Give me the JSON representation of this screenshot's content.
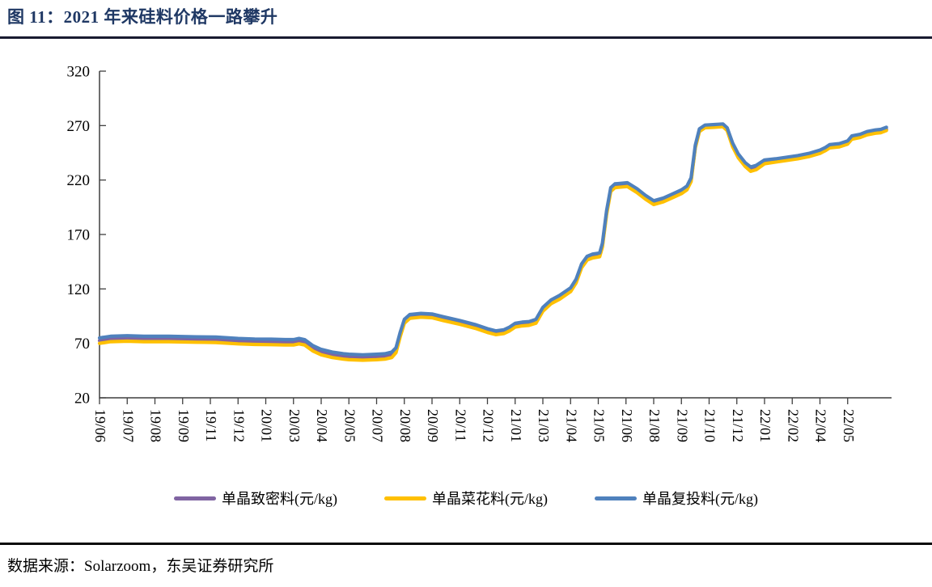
{
  "title": "图 11：2021 年来硅料价格一路攀升",
  "source": "数据来源：Solarzoom，东吴证券研究所",
  "chart_data": {
    "type": "line",
    "title": "图 11：2021 年来硅料价格一路攀升",
    "xlabel": "",
    "ylabel": "",
    "unit": "元/kg",
    "ylim": [
      20,
      320
    ],
    "yticks": [
      20,
      70,
      120,
      170,
      220,
      270,
      320
    ],
    "grid": false,
    "legend_position": "bottom",
    "x_labels": [
      "19/06",
      "19/07",
      "19/08",
      "19/09",
      "19/11",
      "19/12",
      "20/01",
      "20/03",
      "20/04",
      "20/05",
      "20/07",
      "20/08",
      "20/09",
      "20/11",
      "20/12",
      "21/01",
      "21/03",
      "21/04",
      "21/05",
      "21/06",
      "21/08",
      "21/09",
      "21/10",
      "21/12",
      "22/01",
      "22/02",
      "22/04",
      "22/05"
    ],
    "series": [
      {
        "name": "单晶致密料(元/kg)",
        "color": "#8064A2",
        "points": [
          [
            0,
            72.5
          ],
          [
            0.4,
            74
          ],
          [
            1,
            74.5
          ],
          [
            1.6,
            74
          ],
          [
            2.5,
            74
          ],
          [
            3.5,
            73.5
          ],
          [
            4.2,
            73.3
          ],
          [
            5,
            72
          ],
          [
            5.6,
            71.5
          ],
          [
            6.2,
            71.3
          ],
          [
            6.7,
            71
          ],
          [
            7,
            71
          ],
          [
            7.2,
            72
          ],
          [
            7.4,
            71
          ],
          [
            7.7,
            65.5
          ],
          [
            8,
            62
          ],
          [
            8.4,
            59.5
          ],
          [
            8.8,
            58
          ],
          [
            9,
            57.5
          ],
          [
            9.5,
            57
          ],
          [
            10,
            57.5
          ],
          [
            10.3,
            58
          ],
          [
            10.55,
            59.5
          ],
          [
            10.7,
            64
          ],
          [
            10.85,
            78
          ],
          [
            11,
            90
          ],
          [
            11.2,
            94.5
          ],
          [
            11.6,
            95.5
          ],
          [
            12,
            95
          ],
          [
            12.4,
            92.5
          ],
          [
            13,
            89
          ],
          [
            13.6,
            85
          ],
          [
            14,
            81.5
          ],
          [
            14.3,
            79.5
          ],
          [
            14.6,
            80.5
          ],
          [
            14.8,
            83
          ],
          [
            15,
            86.5
          ],
          [
            15.25,
            87.5
          ],
          [
            15.5,
            88
          ],
          [
            15.75,
            90
          ],
          [
            16,
            101
          ],
          [
            16.3,
            108
          ],
          [
            16.6,
            112
          ],
          [
            17,
            119
          ],
          [
            17.2,
            127
          ],
          [
            17.4,
            141
          ],
          [
            17.6,
            148
          ],
          [
            17.8,
            150
          ],
          [
            18.05,
            151
          ],
          [
            18.15,
            160
          ],
          [
            18.3,
            190
          ],
          [
            18.45,
            211
          ],
          [
            18.6,
            214.5
          ],
          [
            19.05,
            215.5
          ],
          [
            19.4,
            210
          ],
          [
            19.7,
            204
          ],
          [
            20,
            199
          ],
          [
            20.35,
            201.5
          ],
          [
            20.7,
            205.5
          ],
          [
            21,
            209
          ],
          [
            21.2,
            212.5
          ],
          [
            21.35,
            220
          ],
          [
            21.5,
            250
          ],
          [
            21.65,
            265
          ],
          [
            21.85,
            268.5
          ],
          [
            22.2,
            269
          ],
          [
            22.5,
            269.5
          ],
          [
            22.65,
            266
          ],
          [
            22.85,
            252
          ],
          [
            23.05,
            242
          ],
          [
            23.3,
            234
          ],
          [
            23.5,
            230
          ],
          [
            23.7,
            231.5
          ],
          [
            24,
            236.5
          ],
          [
            24.4,
            237.5
          ],
          [
            24.8,
            239
          ],
          [
            25.2,
            240.5
          ],
          [
            25.6,
            242.5
          ],
          [
            26,
            245.5
          ],
          [
            26.2,
            248
          ],
          [
            26.35,
            250.5
          ],
          [
            26.7,
            251.5
          ],
          [
            27,
            254
          ],
          [
            27.15,
            258.5
          ],
          [
            27.45,
            260
          ],
          [
            27.7,
            262.5
          ],
          [
            28,
            264
          ],
          [
            28.2,
            264.5
          ],
          [
            28.4,
            266.5
          ]
        ]
      },
      {
        "name": "单晶菜花料(元/kg)",
        "color": "#FFC000",
        "points": [
          [
            0,
            70
          ],
          [
            0.4,
            71.5
          ],
          [
            1,
            72
          ],
          [
            1.6,
            71.5
          ],
          [
            2.5,
            71.5
          ],
          [
            3.5,
            71
          ],
          [
            4.2,
            70.8
          ],
          [
            5,
            69.5
          ],
          [
            5.6,
            69
          ],
          [
            6.2,
            68.8
          ],
          [
            6.7,
            68.5
          ],
          [
            7,
            68.5
          ],
          [
            7.2,
            69.5
          ],
          [
            7.4,
            68.5
          ],
          [
            7.7,
            63
          ],
          [
            8,
            59.5
          ],
          [
            8.4,
            57
          ],
          [
            8.8,
            55.5
          ],
          [
            9,
            55
          ],
          [
            9.5,
            54.5
          ],
          [
            10,
            55
          ],
          [
            10.3,
            55.5
          ],
          [
            10.55,
            57
          ],
          [
            10.7,
            61.5
          ],
          [
            10.85,
            76
          ],
          [
            11,
            88.5
          ],
          [
            11.2,
            93
          ],
          [
            11.6,
            94
          ],
          [
            12,
            93.5
          ],
          [
            12.4,
            91
          ],
          [
            13,
            87.5
          ],
          [
            13.6,
            83.5
          ],
          [
            14,
            80
          ],
          [
            14.3,
            78
          ],
          [
            14.6,
            79
          ],
          [
            14.8,
            81.5
          ],
          [
            15,
            85
          ],
          [
            15.25,
            86
          ],
          [
            15.5,
            86.5
          ],
          [
            15.75,
            88.5
          ],
          [
            16,
            99.5
          ],
          [
            16.3,
            106.5
          ],
          [
            16.6,
            110.5
          ],
          [
            17,
            117.5
          ],
          [
            17.2,
            125.5
          ],
          [
            17.4,
            139.5
          ],
          [
            17.6,
            146.5
          ],
          [
            17.8,
            148.5
          ],
          [
            18.05,
            149.5
          ],
          [
            18.15,
            158.5
          ],
          [
            18.3,
            188.5
          ],
          [
            18.45,
            209.5
          ],
          [
            18.6,
            213
          ],
          [
            19.05,
            214
          ],
          [
            19.4,
            208.5
          ],
          [
            19.7,
            202.5
          ],
          [
            20,
            197.5
          ],
          [
            20.35,
            200
          ],
          [
            20.7,
            204
          ],
          [
            21,
            207.5
          ],
          [
            21.2,
            211
          ],
          [
            21.35,
            218.5
          ],
          [
            21.5,
            249.5
          ],
          [
            21.65,
            264.5
          ],
          [
            21.85,
            268
          ],
          [
            22.2,
            268.5
          ],
          [
            22.5,
            269
          ],
          [
            22.65,
            265.5
          ],
          [
            22.85,
            250.5
          ],
          [
            23.05,
            240.5
          ],
          [
            23.3,
            232.5
          ],
          [
            23.5,
            228
          ],
          [
            23.7,
            229.5
          ],
          [
            24,
            235
          ],
          [
            24.4,
            236.5
          ],
          [
            24.8,
            238
          ],
          [
            25.2,
            239.5
          ],
          [
            25.6,
            241.5
          ],
          [
            26,
            244.5
          ],
          [
            26.2,
            247
          ],
          [
            26.35,
            249.5
          ],
          [
            26.7,
            250.5
          ],
          [
            27,
            253
          ],
          [
            27.15,
            257.5
          ],
          [
            27.45,
            259
          ],
          [
            27.7,
            261.5
          ],
          [
            28,
            263
          ],
          [
            28.2,
            263.5
          ],
          [
            28.4,
            265.5
          ]
        ]
      },
      {
        "name": "单晶复投料(元/kg)",
        "color": "#4F81BD",
        "points": [
          [
            0,
            75
          ],
          [
            0.4,
            76.5
          ],
          [
            1,
            77
          ],
          [
            1.6,
            76.5
          ],
          [
            2.5,
            76.5
          ],
          [
            3.5,
            76
          ],
          [
            4.2,
            75.8
          ],
          [
            5,
            74.5
          ],
          [
            5.6,
            74
          ],
          [
            6.2,
            73.8
          ],
          [
            6.7,
            73.5
          ],
          [
            7,
            73.5
          ],
          [
            7.2,
            74.5
          ],
          [
            7.4,
            73.5
          ],
          [
            7.7,
            68
          ],
          [
            8,
            64.5
          ],
          [
            8.4,
            62
          ],
          [
            8.8,
            60.5
          ],
          [
            9,
            60
          ],
          [
            9.5,
            59.5
          ],
          [
            10,
            60
          ],
          [
            10.3,
            60.5
          ],
          [
            10.55,
            62
          ],
          [
            10.7,
            66
          ],
          [
            10.85,
            80
          ],
          [
            11,
            92
          ],
          [
            11.2,
            96.5
          ],
          [
            11.6,
            97.5
          ],
          [
            12,
            97
          ],
          [
            12.4,
            94.5
          ],
          [
            13,
            91
          ],
          [
            13.6,
            87
          ],
          [
            14,
            83.5
          ],
          [
            14.3,
            81.5
          ],
          [
            14.6,
            82.5
          ],
          [
            14.8,
            85
          ],
          [
            15,
            88.5
          ],
          [
            15.25,
            89.5
          ],
          [
            15.5,
            90
          ],
          [
            15.75,
            92
          ],
          [
            16,
            103
          ],
          [
            16.3,
            110
          ],
          [
            16.6,
            114
          ],
          [
            17,
            121
          ],
          [
            17.2,
            129
          ],
          [
            17.4,
            143
          ],
          [
            17.6,
            150
          ],
          [
            17.8,
            152
          ],
          [
            18.05,
            153
          ],
          [
            18.15,
            162
          ],
          [
            18.3,
            192
          ],
          [
            18.45,
            213
          ],
          [
            18.6,
            216.5
          ],
          [
            19.05,
            217.5
          ],
          [
            19.4,
            212
          ],
          [
            19.7,
            206
          ],
          [
            20,
            201
          ],
          [
            20.35,
            203.5
          ],
          [
            20.7,
            207.5
          ],
          [
            21,
            211
          ],
          [
            21.2,
            214.5
          ],
          [
            21.35,
            222
          ],
          [
            21.5,
            252
          ],
          [
            21.65,
            267
          ],
          [
            21.85,
            270.5
          ],
          [
            22.2,
            271
          ],
          [
            22.5,
            271.5
          ],
          [
            22.65,
            268
          ],
          [
            22.85,
            254
          ],
          [
            23.05,
            244
          ],
          [
            23.3,
            236
          ],
          [
            23.5,
            232
          ],
          [
            23.7,
            233.5
          ],
          [
            24,
            238.5
          ],
          [
            24.4,
            239.5
          ],
          [
            24.8,
            241
          ],
          [
            25.2,
            242.5
          ],
          [
            25.6,
            244.5
          ],
          [
            26,
            247.5
          ],
          [
            26.2,
            250
          ],
          [
            26.35,
            252.5
          ],
          [
            26.7,
            253.5
          ],
          [
            27,
            256
          ],
          [
            27.15,
            260.5
          ],
          [
            27.45,
            262
          ],
          [
            27.7,
            264.5
          ],
          [
            28,
            266
          ],
          [
            28.2,
            266.5
          ],
          [
            28.4,
            268.5
          ]
        ]
      }
    ]
  }
}
